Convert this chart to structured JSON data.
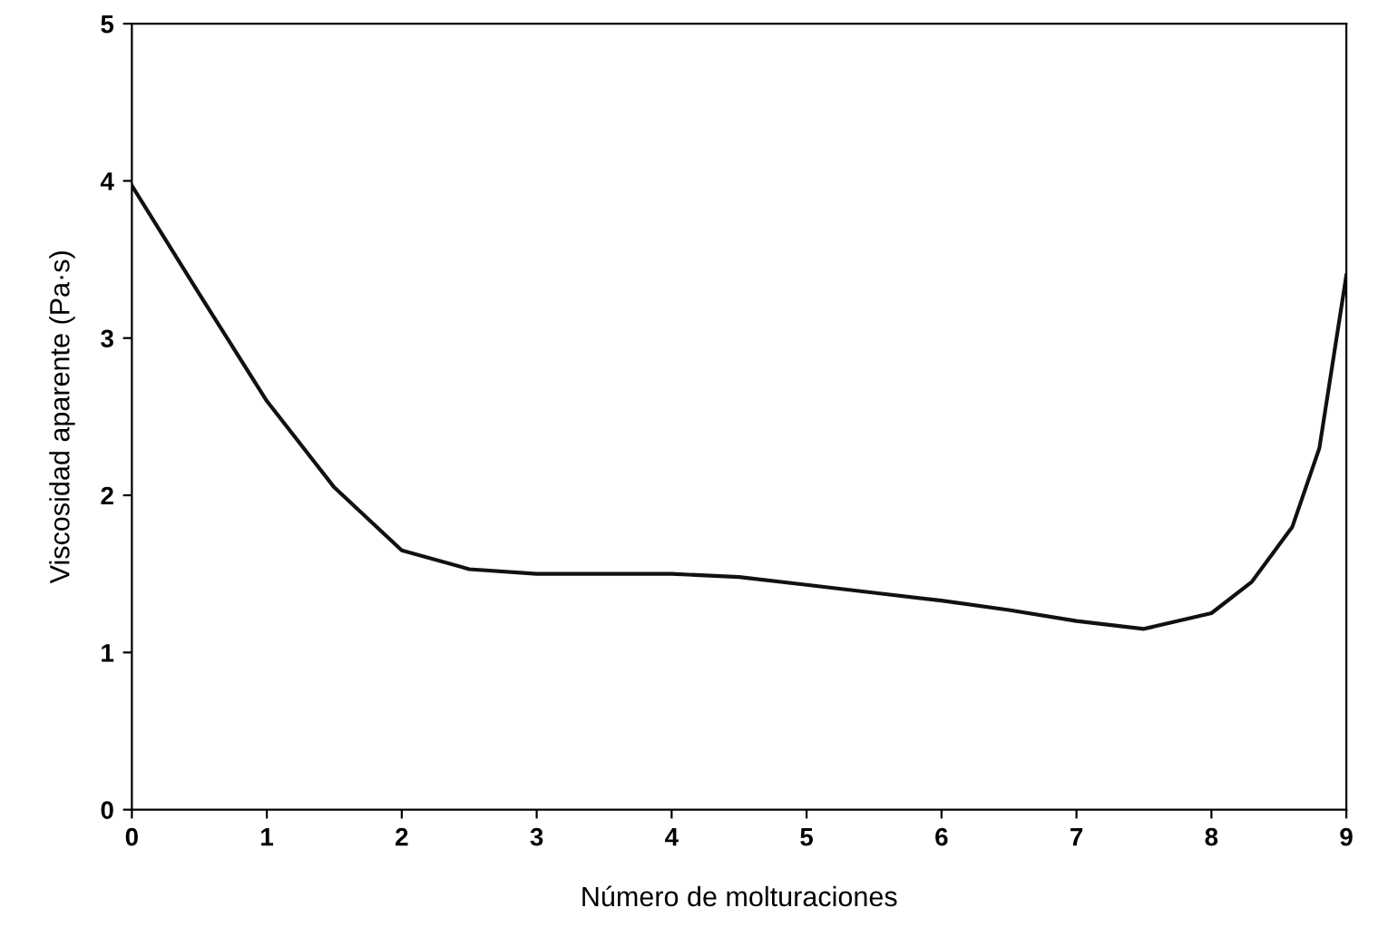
{
  "chart_data": {
    "type": "line",
    "xlabel": "Número de molturaciones",
    "ylabel": "Viscosidad aparente (Pa·s)",
    "x": [
      0,
      0.5,
      1,
      1.5,
      2,
      2.5,
      3,
      3.5,
      4,
      4.5,
      5,
      5.5,
      6,
      6.5,
      7,
      7.5,
      8,
      8.3,
      8.6,
      8.8,
      9
    ],
    "series": [
      {
        "color": "#111111",
        "values": [
          3.97,
          3.28,
          2.6,
          2.05,
          1.65,
          1.53,
          1.5,
          1.5,
          1.5,
          1.48,
          1.43,
          1.38,
          1.33,
          1.27,
          1.2,
          1.15,
          1.25,
          1.45,
          1.8,
          2.3,
          3.4
        ]
      }
    ],
    "xlim": [
      0,
      9
    ],
    "ylim": [
      0,
      5
    ],
    "xticks": [
      0,
      1,
      2,
      3,
      4,
      5,
      6,
      7,
      8,
      9
    ],
    "yticks": [
      0,
      1,
      2,
      3,
      4,
      5
    ],
    "grid": false,
    "legend": false,
    "marker": "none",
    "line_style": "solid"
  }
}
